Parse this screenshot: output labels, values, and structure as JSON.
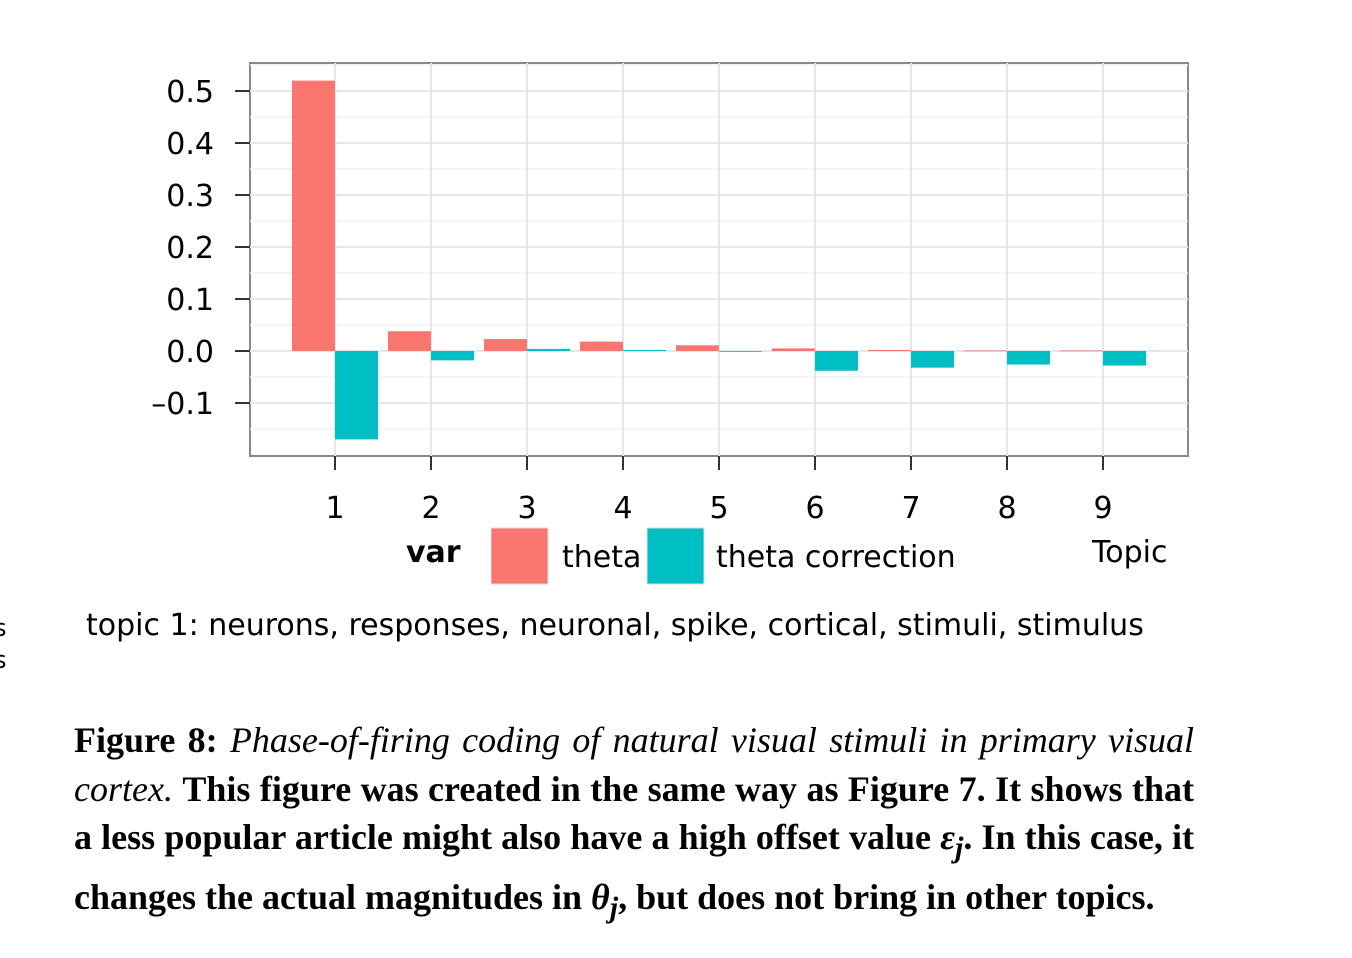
{
  "chart_data": {
    "type": "bar",
    "categories": [
      "1",
      "2",
      "3",
      "4",
      "5",
      "6",
      "7",
      "8",
      "9"
    ],
    "series": [
      {
        "name": "theta",
        "color": "#f8766d",
        "values": [
          0.52,
          0.038,
          0.023,
          0.018,
          0.011,
          0.005,
          0.002,
          0.001,
          0.001
        ]
      },
      {
        "name": "theta correction",
        "color": "#00bfc4",
        "values": [
          -0.17,
          -0.018,
          0.004,
          0.002,
          0.0,
          -0.038,
          -0.032,
          -0.026,
          -0.028
        ]
      }
    ],
    "xlabel": "Topic",
    "ylabel": "",
    "ylim": [
      -0.2,
      0.555
    ],
    "yticks": [
      "0.5",
      "0.4",
      "0.3",
      "0.2",
      "0.1",
      "0.0",
      "–0.1"
    ],
    "ytick_values": [
      0.5,
      0.4,
      0.3,
      0.2,
      0.1,
      0.0,
      -0.1
    ],
    "legend": {
      "title": "var",
      "placement": "bottom"
    },
    "grid": true
  },
  "topic_text": "topic 1: neurons, responses, neuronal, spike, cortical, stimuli, stimulus",
  "edge_glyphs": [
    "s",
    "s"
  ],
  "caption": {
    "label": "Figure 8:",
    "title": "Phase-of-firing coding of natural visual stimuli in primary visual cortex.",
    "sentence1": "This figure was created in the same way as Figure 7. It shows that a less popular article might also have a high offset value",
    "eps": "ε",
    "sub_j": "j",
    "sentence2": ". In this case, it changes the actual magnitudes in",
    "theta": "θ",
    "sentence3": ", but does not bring in other topics."
  }
}
